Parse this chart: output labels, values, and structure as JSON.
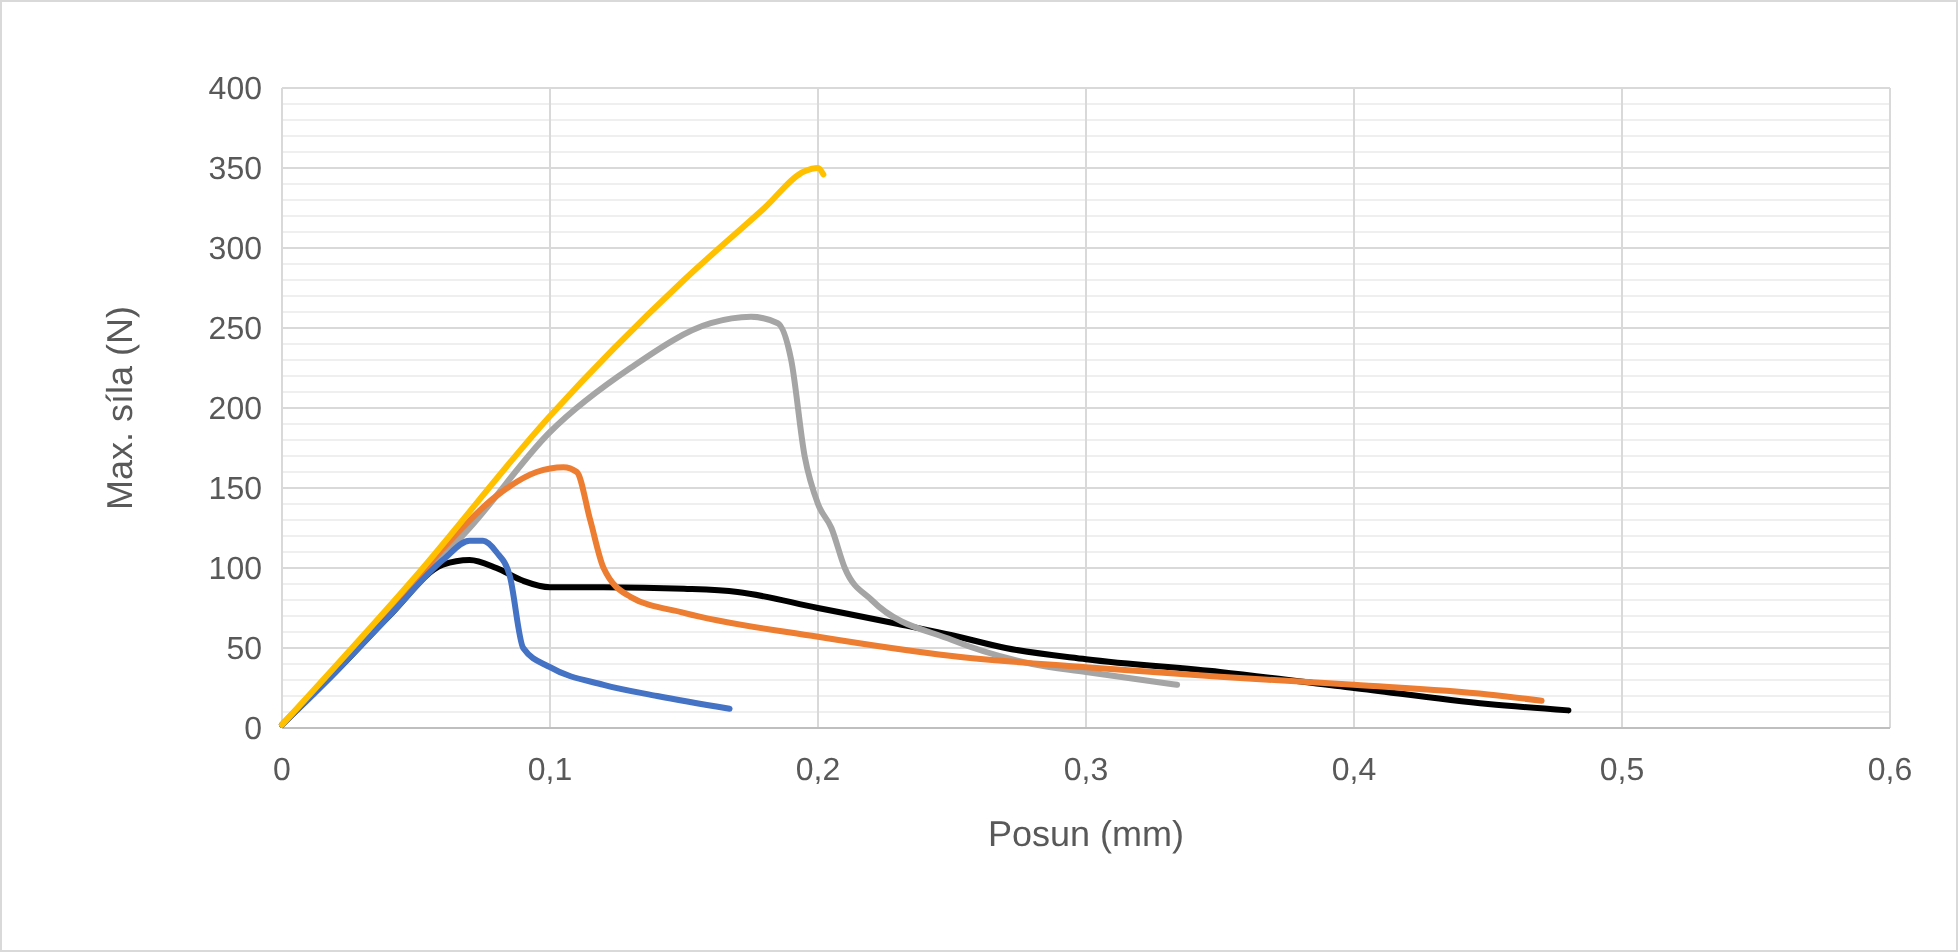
{
  "chart_data": {
    "type": "line",
    "xlabel": "Posun (mm)",
    "ylabel": "Max. síla (N)",
    "xlim": [
      0,
      0.6
    ],
    "ylim": [
      0,
      400
    ],
    "xticks": [
      0,
      {
        "value": 0.1,
        "label": "0,1"
      },
      {
        "value": 0.2,
        "label": "0,2"
      },
      {
        "value": 0.3,
        "label": "0,3"
      },
      {
        "value": 0.4,
        "label": "0,4"
      },
      {
        "value": 0.5,
        "label": "0,5"
      },
      {
        "value": 0.6,
        "label": "0,6"
      }
    ],
    "yticks": [
      0,
      50,
      100,
      150,
      200,
      250,
      300,
      350,
      400
    ],
    "grid": true,
    "marker": "none",
    "line_style": "solid",
    "series": [
      {
        "color": "#000000",
        "x": [
          0,
          0.02,
          0.04,
          0.06,
          0.07,
          0.08,
          0.09,
          0.1,
          0.12,
          0.15,
          0.17,
          0.2,
          0.23,
          0.25,
          0.27,
          0.3,
          0.35,
          0.4,
          0.45,
          0.48
        ],
        "values": [
          2,
          35,
          70,
          102,
          105,
          100,
          92,
          88,
          88,
          87,
          85,
          75,
          65,
          58,
          50,
          43,
          35,
          25,
          15,
          11
        ]
      },
      {
        "color": "#a5a5a5",
        "x": [
          0,
          0.05,
          0.07,
          0.1,
          0.13,
          0.16,
          0.175,
          0.185,
          0.19,
          0.195,
          0.2,
          0.205,
          0.21,
          0.22,
          0.25,
          0.28,
          0.3,
          0.334
        ],
        "values": [
          2,
          90,
          125,
          185,
          225,
          253,
          257,
          253,
          230,
          170,
          140,
          125,
          100,
          80,
          55,
          40,
          35,
          27
        ]
      },
      {
        "color": "#ed7d31",
        "x": [
          0,
          0.02,
          0.04,
          0.06,
          0.08,
          0.095,
          0.105,
          0.11,
          0.115,
          0.12,
          0.13,
          0.15,
          0.2,
          0.25,
          0.3,
          0.35,
          0.4,
          0.45,
          0.47
        ],
        "values": [
          2,
          36,
          72,
          112,
          145,
          160,
          163,
          160,
          130,
          100,
          82,
          72,
          57,
          45,
          38,
          32,
          27,
          21,
          17
        ]
      },
      {
        "color": "#4472c4",
        "x": [
          0,
          0.02,
          0.04,
          0.06,
          0.07,
          0.075,
          0.08,
          0.085,
          0.09,
          0.1,
          0.12,
          0.14,
          0.167
        ],
        "values": [
          2,
          35,
          70,
          105,
          117,
          117,
          110,
          95,
          50,
          38,
          27,
          20,
          12
        ]
      },
      {
        "color": "#ffc000",
        "x": [
          0,
          0.05,
          0.1,
          0.15,
          0.18,
          0.195,
          0.2,
          0.202
        ],
        "values": [
          2,
          95,
          195,
          280,
          325,
          348,
          350,
          346
        ]
      }
    ]
  }
}
